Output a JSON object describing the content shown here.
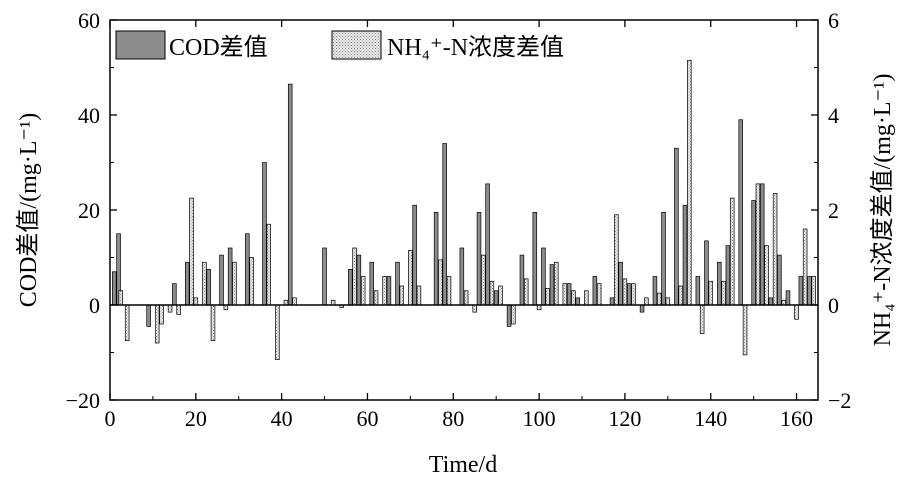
{
  "chart_data": {
    "type": "bar",
    "xlabel": "Time/d",
    "ylabel_left": "COD差值/(mg·L⁻¹)",
    "ylabel_right": "NH₄⁺-N浓度差值/(mg·L⁻¹)",
    "xlim": [
      0,
      165
    ],
    "ylim_left": [
      -20,
      60
    ],
    "ylim_right": [
      -2,
      6
    ],
    "x_ticks": [
      0,
      20,
      40,
      60,
      80,
      100,
      120,
      140,
      160
    ],
    "y_ticks_left": [
      -20,
      0,
      20,
      40,
      60
    ],
    "y_ticks_right": [
      -2,
      0,
      2,
      4,
      6
    ],
    "legend_placement": "top-left",
    "grid": false,
    "colors": {
      "cod": "#8c8c8c",
      "nh4": "#e6e6e6",
      "axis": "#000000"
    },
    "series": [
      {
        "name": "COD差值",
        "axis": "left",
        "pattern": "solid-gray",
        "x": [
          1,
          2,
          9,
          15,
          18,
          23,
          26,
          28,
          32,
          36,
          42,
          50,
          56,
          58,
          61,
          65,
          67,
          71,
          76,
          78,
          82,
          86,
          88,
          90,
          93,
          96,
          99,
          101,
          103,
          107,
          109,
          113,
          117,
          119,
          121,
          124,
          127,
          129,
          132,
          134,
          137,
          139,
          142,
          144,
          147,
          150,
          152,
          154,
          156,
          158,
          161,
          163
        ],
        "values": [
          7,
          15,
          -4.5,
          4.5,
          9,
          7.5,
          10.5,
          12,
          15,
          30,
          46.5,
          12,
          7.5,
          10.5,
          9,
          6,
          9,
          21,
          19.5,
          34,
          12,
          19.5,
          25.5,
          3,
          -4.5,
          10.5,
          19.5,
          12,
          8.5,
          4.5,
          1.5,
          6,
          1.5,
          9,
          4.5,
          -1.5,
          6,
          19.5,
          33,
          21,
          6,
          13.5,
          9,
          12.5,
          39,
          22,
          25.5,
          1.5,
          10.5,
          3,
          6,
          6
        ]
      },
      {
        "name": "NH₄⁺-N浓度差值",
        "axis": "right",
        "pattern": "light-dotted",
        "x": [
          2.5,
          4,
          6,
          8,
          11,
          12,
          14,
          16,
          19,
          20,
          22,
          24,
          27,
          29,
          33,
          37,
          39,
          41,
          43,
          52,
          54,
          57,
          59,
          62,
          64,
          68,
          70,
          72,
          77,
          79,
          83,
          85,
          87,
          89,
          91,
          94,
          97,
          100,
          102,
          104,
          106,
          108,
          111,
          114,
          118,
          120,
          122,
          125,
          128,
          130,
          133,
          135,
          138,
          140,
          143,
          145,
          148,
          151,
          153,
          155,
          157,
          160,
          162,
          164
        ],
        "values": [
          0.3,
          -0.75,
          0,
          0,
          -0.8,
          -0.4,
          -0.15,
          -0.2,
          2.25,
          0.15,
          0.9,
          -0.75,
          -0.1,
          0.9,
          1,
          1.7,
          -1.15,
          0.1,
          0.15,
          0.1,
          -0.05,
          1.2,
          0.6,
          0.3,
          0.6,
          0.4,
          1.15,
          0.4,
          0.95,
          0.6,
          0.3,
          -0.15,
          1.05,
          0.5,
          0.4,
          -0.4,
          0.55,
          -0.1,
          0.35,
          0.9,
          0.45,
          0.3,
          0.3,
          0.45,
          1.9,
          0.55,
          0.45,
          0.15,
          0.25,
          0.15,
          0.4,
          5.15,
          -0.6,
          0.5,
          0.5,
          2.25,
          -1.05,
          2.55,
          1.25,
          2.35,
          0.1,
          -0.3,
          1.6,
          0.6
        ]
      }
    ]
  }
}
